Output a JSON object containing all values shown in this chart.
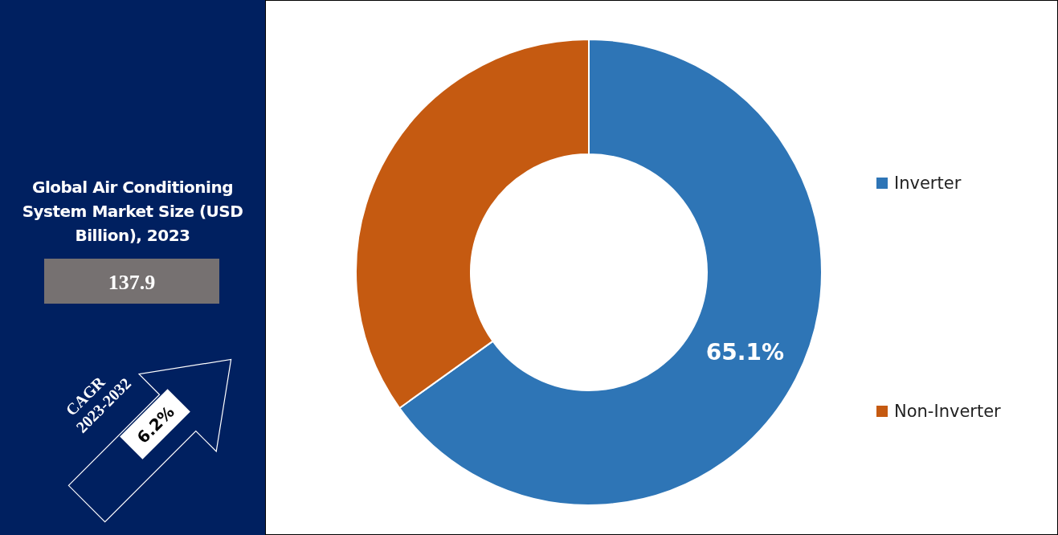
{
  "chart_data": [
    {
      "type": "other",
      "title": "Global Air Conditioning System Market Size (USD Billion), 2023",
      "annotations": [
        "137.9",
        "CAGR",
        "2023-2032",
        "6.2%"
      ]
    },
    {
      "type": "donut",
      "categories": [
        "Inverter",
        "Non-Inverter"
      ],
      "values": [
        65.1,
        34.9
      ],
      "colors": [
        "#2e75b6",
        "#c55a11"
      ],
      "value_labels": [
        "65.1%",
        null
      ],
      "legend": "right"
    }
  ]
}
